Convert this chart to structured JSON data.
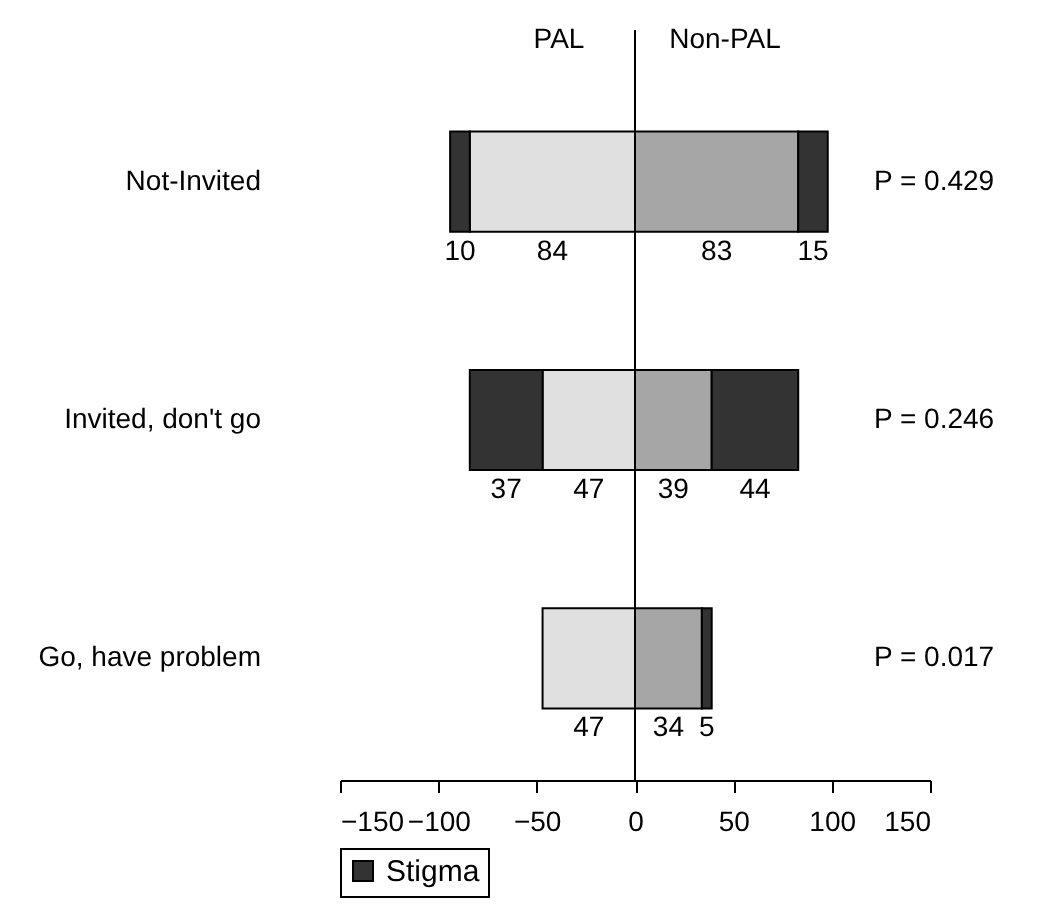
{
  "chart_data": {
    "type": "bar",
    "orientation": "horizontal",
    "categories": [
      "Not-Invited",
      "Invited, don't go",
      "Go, have problem"
    ],
    "series": [
      {
        "color": "#e0e0e0",
        "base": [
          -84,
          -47,
          -47
        ],
        "values": [
          84,
          47,
          47
        ]
      },
      {
        "name": "Stigma",
        "color": "#333333",
        "base": [
          -94,
          -84,
          null
        ],
        "values": [
          10,
          37,
          null
        ]
      },
      {
        "color": "#a6a6a6",
        "base": [
          0,
          0,
          0
        ],
        "values": [
          83,
          39,
          34
        ]
      },
      {
        "color": "#333333",
        "base": [
          83,
          39,
          34
        ],
        "values": [
          15,
          44,
          5
        ]
      }
    ],
    "data_labels": true,
    "xlim": [
      -150,
      150
    ],
    "xticks": [
      -150,
      -100,
      -50,
      0,
      50,
      100,
      150
    ],
    "ref_lines": [
      {
        "axis": "x",
        "value": 0
      }
    ],
    "annotations": [
      "PAL",
      "Non-PAL",
      "P = 0.429",
      "P = 0.246",
      "P = 0.017"
    ],
    "grid": false,
    "legend": "bottom"
  }
}
